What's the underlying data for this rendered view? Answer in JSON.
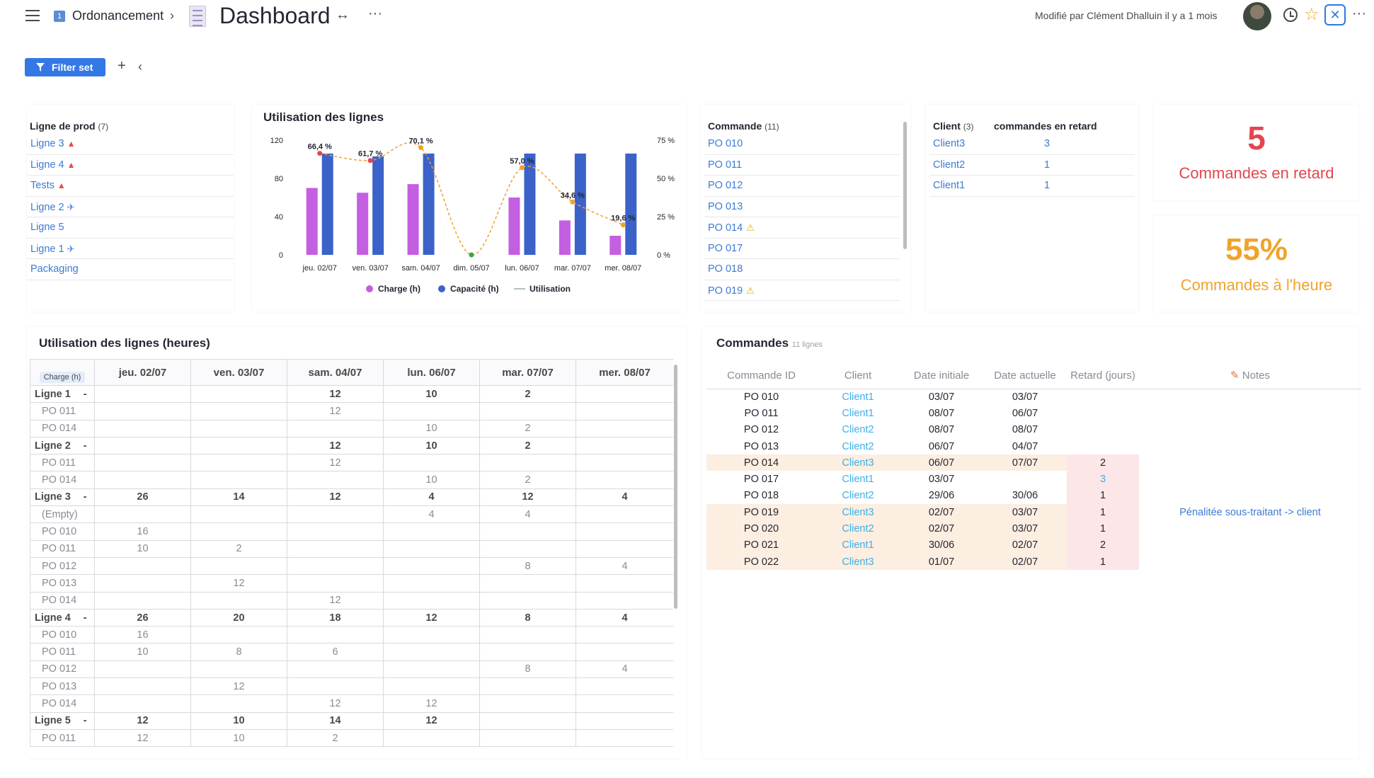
{
  "header": {
    "doc_number": "1",
    "doc_name": "Ordonancement",
    "page_title": "Dashboard",
    "arrows": "↔",
    "more": "···",
    "modified": "Modifié par Clément Dhalluin il y a 1 mois"
  },
  "filterbar": {
    "filter_label": "Filter set",
    "plus": "+",
    "collapse": "‹"
  },
  "lignes_prod": {
    "title": "Ligne de prod",
    "count": "(7)",
    "items": [
      "Ligne 3",
      "Ligne 4",
      "Tests",
      "Ligne 2",
      "Ligne 5",
      "Ligne 1",
      "Packaging"
    ]
  },
  "chart_card": {
    "title": "Utilisation des lignes"
  },
  "chart_data": {
    "type": "bar",
    "title": "Utilisation des lignes",
    "categories": [
      "jeu. 02/07",
      "ven. 03/07",
      "sam. 04/07",
      "dim. 05/07",
      "lun. 06/07",
      "mar. 07/07",
      "mer. 08/07"
    ],
    "series": [
      {
        "name": "Charge (h)",
        "type": "bar",
        "axis": "left",
        "color": "#c45fe2",
        "values": [
          70,
          65,
          74,
          0,
          60,
          36,
          20
        ]
      },
      {
        "name": "Capacité (h)",
        "type": "bar",
        "axis": "left",
        "color": "#3b62c8",
        "values": [
          106,
          103,
          106,
          0,
          106,
          106,
          106
        ]
      },
      {
        "name": "Utilisation",
        "type": "line",
        "axis": "right",
        "values": [
          66.4,
          61.7,
          70.1,
          0,
          57.0,
          34.6,
          19.6
        ],
        "labels": [
          "66,4 %",
          "61,7 %",
          "70,1 %",
          "",
          "57,0 %",
          "34,6 %",
          "19,6 %"
        ]
      }
    ],
    "y_left": {
      "ticks": [
        "120",
        "80",
        "40",
        "0"
      ],
      "range": [
        0,
        120
      ]
    },
    "y_right": {
      "ticks": [
        "75 %",
        "50 %",
        "25 %",
        "0 %"
      ],
      "range": [
        0,
        75
      ]
    },
    "legend": [
      "Charge (h)",
      "Capacité (h)",
      "Utilisation"
    ],
    "legend_position": "bottom"
  },
  "commandes_list": {
    "title": "Commande",
    "count": "(11)",
    "items": [
      {
        "label": "PO 010",
        "warn": false
      },
      {
        "label": "PO 011",
        "warn": false
      },
      {
        "label": "PO 012",
        "warn": false
      },
      {
        "label": "PO 013",
        "warn": false
      },
      {
        "label": "PO 014",
        "warn": true
      },
      {
        "label": "PO 017",
        "warn": false
      },
      {
        "label": "PO 018",
        "warn": false
      },
      {
        "label": "PO 019",
        "warn": true
      }
    ]
  },
  "clients": {
    "title": "Client",
    "count": "(3)",
    "col2": "commandes en retard",
    "items": [
      {
        "name": "Client3",
        "value": "3"
      },
      {
        "name": "Client2",
        "value": "1"
      },
      {
        "name": "Client1",
        "value": "1"
      }
    ]
  },
  "kpi": {
    "late": {
      "value": "5",
      "label": "Commandes en retard",
      "color": "#e4464d"
    },
    "ontime": {
      "value": "55%",
      "label": "Commandes à l'heure",
      "color": "#f0a32a"
    }
  },
  "pivot": {
    "title": "Utilisation des lignes (heures)",
    "measure": "Charge (h)",
    "columns": [
      "jeu. 02/07",
      "ven. 03/07",
      "sam. 04/07",
      "lun. 06/07",
      "mar. 07/07",
      "mer. 08/07"
    ],
    "rows": [
      {
        "label": "Ligne 1",
        "group": true,
        "values": [
          "",
          "",
          "12",
          "10",
          "2",
          ""
        ]
      },
      {
        "label": "PO 011",
        "group": false,
        "values": [
          "",
          "",
          "12",
          "",
          "",
          ""
        ]
      },
      {
        "label": "PO 014",
        "group": false,
        "values": [
          "",
          "",
          "",
          "10",
          "2",
          ""
        ]
      },
      {
        "label": "Ligne 2",
        "group": true,
        "values": [
          "",
          "",
          "12",
          "10",
          "2",
          ""
        ]
      },
      {
        "label": "PO 011",
        "group": false,
        "values": [
          "",
          "",
          "12",
          "",
          "",
          ""
        ]
      },
      {
        "label": "PO 014",
        "group": false,
        "values": [
          "",
          "",
          "",
          "10",
          "2",
          ""
        ]
      },
      {
        "label": "Ligne 3",
        "group": true,
        "values": [
          "26",
          "14",
          "12",
          "4",
          "12",
          "4"
        ]
      },
      {
        "label": "(Empty)",
        "group": false,
        "values": [
          "",
          "",
          "",
          "4",
          "4",
          ""
        ]
      },
      {
        "label": "PO 010",
        "group": false,
        "values": [
          "16",
          "",
          "",
          "",
          "",
          ""
        ]
      },
      {
        "label": "PO 011",
        "group": false,
        "values": [
          "10",
          "2",
          "",
          "",
          "",
          ""
        ]
      },
      {
        "label": "PO 012",
        "group": false,
        "values": [
          "",
          "",
          "",
          "",
          "8",
          "4"
        ]
      },
      {
        "label": "PO 013",
        "group": false,
        "values": [
          "",
          "12",
          "",
          "",
          "",
          ""
        ]
      },
      {
        "label": "PO 014",
        "group": false,
        "values": [
          "",
          "",
          "12",
          "",
          "",
          ""
        ]
      },
      {
        "label": "Ligne 4",
        "group": true,
        "values": [
          "26",
          "20",
          "18",
          "12",
          "8",
          "4"
        ]
      },
      {
        "label": "PO 010",
        "group": false,
        "values": [
          "16",
          "",
          "",
          "",
          "",
          ""
        ]
      },
      {
        "label": "PO 011",
        "group": false,
        "values": [
          "10",
          "8",
          "6",
          "",
          "",
          ""
        ]
      },
      {
        "label": "PO 012",
        "group": false,
        "values": [
          "",
          "",
          "",
          "",
          "8",
          "4"
        ]
      },
      {
        "label": "PO 013",
        "group": false,
        "values": [
          "",
          "12",
          "",
          "",
          "",
          ""
        ]
      },
      {
        "label": "PO 014",
        "group": false,
        "values": [
          "",
          "",
          "12",
          "12",
          "",
          ""
        ]
      },
      {
        "label": "Ligne 5",
        "group": true,
        "values": [
          "12",
          "10",
          "14",
          "12",
          "",
          ""
        ]
      },
      {
        "label": "PO 011",
        "group": false,
        "values": [
          "12",
          "10",
          "2",
          "",
          "",
          ""
        ]
      }
    ]
  },
  "commandes_table": {
    "title": "Commandes",
    "count": "11 lignes",
    "columns": [
      "Commande ID",
      "Client",
      "Date initiale",
      "Date actuelle",
      "Retard (jours)",
      "Notes"
    ],
    "rows": [
      {
        "id": "PO 010",
        "client": "Client1",
        "init": "03/07",
        "actual": "03/07",
        "retard": "",
        "notes": "",
        "late": false
      },
      {
        "id": "PO 011",
        "client": "Client1",
        "init": "08/07",
        "actual": "06/07",
        "retard": "",
        "notes": "",
        "late": false
      },
      {
        "id": "PO 012",
        "client": "Client2",
        "init": "08/07",
        "actual": "08/07",
        "retard": "",
        "notes": "",
        "late": false
      },
      {
        "id": "PO 013",
        "client": "Client2",
        "init": "06/07",
        "actual": "04/07",
        "retard": "",
        "notes": "",
        "late": false
      },
      {
        "id": "PO 014",
        "client": "Client3",
        "init": "06/07",
        "actual": "07/07",
        "retard": "2",
        "notes": "",
        "late": true
      },
      {
        "id": "PO 017",
        "client": "Client1",
        "init": "03/07",
        "actual": "",
        "retard": "3",
        "notes": "",
        "late": false
      },
      {
        "id": "PO 018",
        "client": "Client2",
        "init": "29/06",
        "actual": "30/06",
        "retard": "1",
        "notes": "",
        "late": false
      },
      {
        "id": "PO 019",
        "client": "Client3",
        "init": "02/07",
        "actual": "03/07",
        "retard": "1",
        "notes": "Pénalitée sous-traitant -> client",
        "late": true
      },
      {
        "id": "PO 020",
        "client": "Client2",
        "init": "02/07",
        "actual": "03/07",
        "retard": "1",
        "notes": "",
        "late": true
      },
      {
        "id": "PO 021",
        "client": "Client1",
        "init": "30/06",
        "actual": "02/07",
        "retard": "2",
        "notes": "",
        "late": true
      },
      {
        "id": "PO 022",
        "client": "Client3",
        "init": "01/07",
        "actual": "02/07",
        "retard": "1",
        "notes": "",
        "late": true
      }
    ]
  }
}
